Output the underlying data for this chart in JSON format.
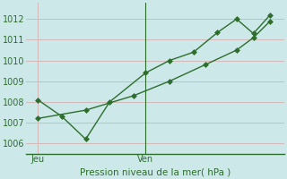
{
  "title": "Pression niveau de la mer( hPa )",
  "bg_color": "#cce8e8",
  "grid_color": "#d4b8b8",
  "line_color": "#2d6e2d",
  "x_ticks_labels": [
    "Jeu",
    "Ven"
  ],
  "x_ticks_pos": [
    0.5,
    5.0
  ],
  "vline_pos": 5.0,
  "ylim": [
    1005.5,
    1012.8
  ],
  "yticks": [
    1006,
    1007,
    1008,
    1009,
    1010,
    1011,
    1012
  ],
  "series1_x": [
    0.5,
    1.5,
    2.5,
    3.5,
    5.0,
    6.0,
    7.0,
    8.0,
    8.8,
    9.5,
    10.2
  ],
  "series1_y": [
    1008.1,
    1007.3,
    1006.2,
    1008.0,
    1009.4,
    1010.0,
    1010.4,
    1011.35,
    1012.0,
    1011.3,
    1012.2
  ],
  "series2_x": [
    0.5,
    2.5,
    4.5,
    6.0,
    7.5,
    8.8,
    9.5,
    10.2
  ],
  "series2_y": [
    1007.2,
    1007.6,
    1008.3,
    1009.0,
    1009.8,
    1010.5,
    1011.1,
    1011.9
  ],
  "xlim": [
    0.0,
    10.8
  ],
  "marker": "D",
  "markersize": 3.0,
  "linewidth": 1.0
}
